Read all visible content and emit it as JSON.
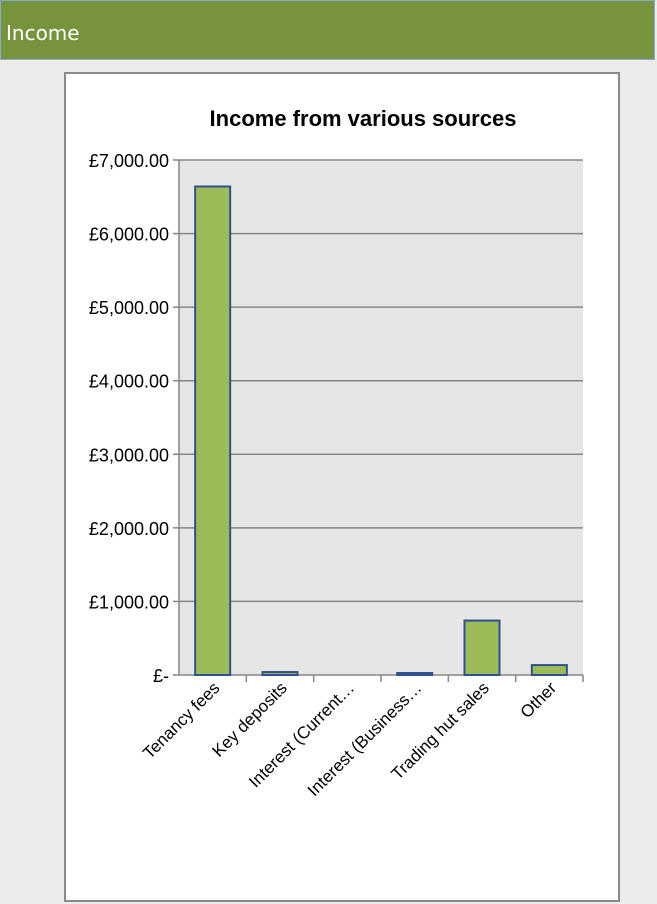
{
  "section": {
    "title": "Income"
  },
  "chart_data": {
    "type": "bar",
    "title": "Income from various sources",
    "categories": [
      "Tenancy fees",
      "Key deposits",
      "Interest (Current…",
      "Interest (Business…",
      "Trading hut sales",
      "Other"
    ],
    "values": [
      6640,
      40,
      0,
      15,
      740,
      135
    ],
    "ylim": [
      0,
      7000
    ],
    "yticks": [
      0,
      1000,
      2000,
      3000,
      4000,
      5000,
      6000,
      7000
    ],
    "ytick_labels": [
      "£-",
      "£1,000.00",
      "£2,000.00",
      "£3,000.00",
      "£4,000.00",
      "£5,000.00",
      "£6,000.00",
      "£7,000.00"
    ],
    "xlabel": "",
    "ylabel": "",
    "grid": true,
    "bar_color": "#9bbb59",
    "bar_border": "#2f528f",
    "plot_background": "#e6e6e6"
  }
}
